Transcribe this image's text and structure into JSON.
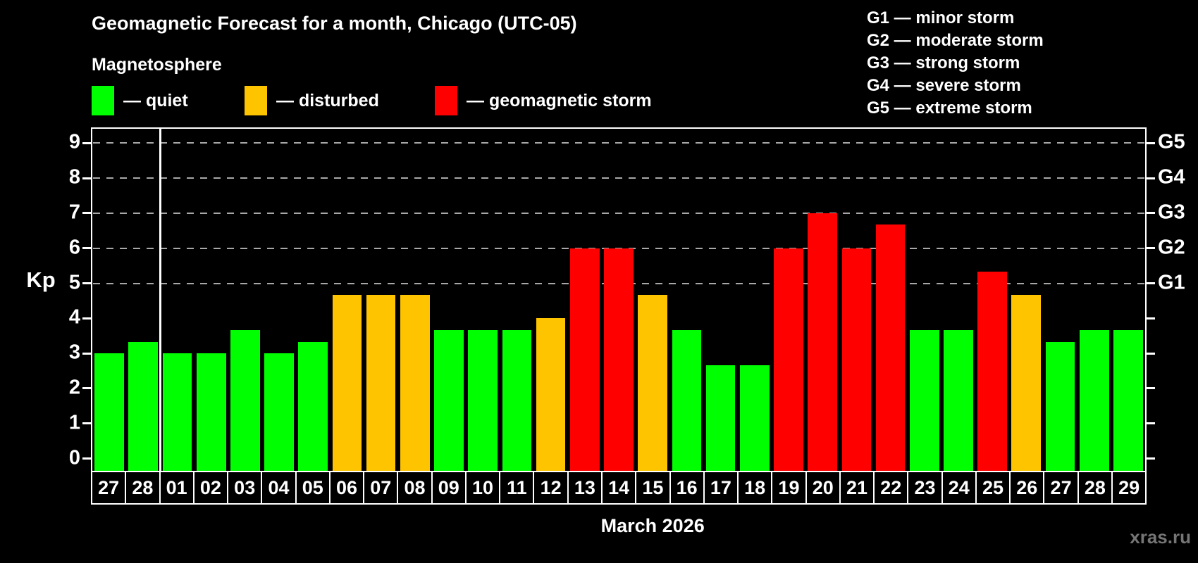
{
  "title": "Geomagnetic Forecast for a month, Chicago (UTC-05)",
  "subtitle": "Magnetosphere",
  "legend": {
    "quiet": {
      "label": "— quiet",
      "color": "#00ff00"
    },
    "disturbed": {
      "label": "— disturbed",
      "color": "#ffc400"
    },
    "storm": {
      "label": "— geomagnetic storm",
      "color": "#ff0000"
    }
  },
  "g_scale": [
    "G1 — minor storm",
    "G2 — moderate storm",
    "G3 — strong storm",
    "G4 — severe storm",
    "G5 — extreme storm"
  ],
  "watermark": "xras.ru",
  "chart_data": {
    "type": "bar",
    "title": "Geomagnetic Forecast for a month, Chicago (UTC-05)",
    "xlabel": "March 2026",
    "ylabel": "Kp",
    "ylim": [
      0,
      9
    ],
    "y_ticks": [
      0,
      1,
      2,
      3,
      4,
      5,
      6,
      7,
      8,
      9
    ],
    "gridlines_kp": [
      5,
      6,
      7,
      8,
      9
    ],
    "grid": "dashed horizontal lines at storm levels G1–G5 only",
    "legend_position": "top-left",
    "right_axis": [
      {
        "label": "G1",
        "kp": 5
      },
      {
        "label": "G2",
        "kp": 6
      },
      {
        "label": "G3",
        "kp": 7
      },
      {
        "label": "G4",
        "kp": 8
      },
      {
        "label": "G5",
        "kp": 9
      }
    ],
    "month_boundary_index": 2,
    "categories": [
      "27",
      "28",
      "01",
      "02",
      "03",
      "04",
      "05",
      "06",
      "07",
      "08",
      "09",
      "10",
      "11",
      "12",
      "13",
      "14",
      "15",
      "16",
      "17",
      "18",
      "19",
      "20",
      "21",
      "22",
      "23",
      "24",
      "25",
      "26",
      "27",
      "28",
      "29"
    ],
    "values": [
      3.0,
      3.33,
      3.0,
      3.0,
      3.67,
      3.0,
      3.33,
      4.67,
      4.67,
      4.67,
      3.67,
      3.67,
      3.67,
      4.0,
      6.0,
      6.0,
      4.67,
      3.67,
      2.67,
      2.67,
      6.0,
      7.0,
      6.0,
      6.67,
      3.67,
      3.67,
      5.33,
      4.67,
      3.33,
      3.67,
      3.67
    ],
    "statuses": [
      "quiet",
      "quiet",
      "quiet",
      "quiet",
      "quiet",
      "quiet",
      "quiet",
      "disturbed",
      "disturbed",
      "disturbed",
      "quiet",
      "quiet",
      "quiet",
      "disturbed",
      "storm",
      "storm",
      "disturbed",
      "quiet",
      "quiet",
      "quiet",
      "storm",
      "storm",
      "storm",
      "storm",
      "quiet",
      "quiet",
      "storm",
      "disturbed",
      "quiet",
      "quiet",
      "quiet"
    ],
    "status_colors": {
      "quiet": "#00ff00",
      "disturbed": "#ffc400",
      "storm": "#ff0000"
    }
  }
}
